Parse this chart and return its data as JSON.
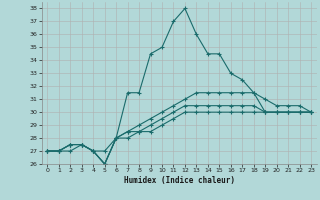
{
  "xlabel": "Humidex (Indice chaleur)",
  "background_color": "#b2d8d8",
  "grid_color": "#b0b0b0",
  "line_color": "#1a6b6b",
  "xlim": [
    -0.5,
    23.5
  ],
  "ylim": [
    26,
    38.5
  ],
  "yticks": [
    26,
    27,
    28,
    29,
    30,
    31,
    32,
    33,
    34,
    35,
    36,
    37,
    38
  ],
  "xticks": [
    0,
    1,
    2,
    3,
    4,
    5,
    6,
    7,
    8,
    9,
    10,
    11,
    12,
    13,
    14,
    15,
    16,
    17,
    18,
    19,
    20,
    21,
    22,
    23
  ],
  "series": [
    {
      "x": [
        0,
        1,
        2,
        3,
        4,
        5,
        6,
        7,
        8,
        9,
        10,
        11,
        12,
        13,
        14,
        15,
        16,
        17,
        18,
        19,
        20,
        21,
        22,
        23
      ],
      "y": [
        27.0,
        27.0,
        27.5,
        27.5,
        27.0,
        27.0,
        28.0,
        31.5,
        31.5,
        34.5,
        35.0,
        37.0,
        38.0,
        36.0,
        34.5,
        34.5,
        33.0,
        32.5,
        31.5,
        30.0,
        30.0,
        30.0,
        30.0,
        30.0
      ]
    },
    {
      "x": [
        0,
        1,
        2,
        3,
        4,
        5,
        6,
        7,
        8,
        9,
        10,
        11,
        12,
        13,
        14,
        15,
        16,
        17,
        18,
        19,
        20,
        21,
        22,
        23
      ],
      "y": [
        27.0,
        27.0,
        27.5,
        27.5,
        27.0,
        26.0,
        28.0,
        28.5,
        29.0,
        29.5,
        30.0,
        30.5,
        31.0,
        31.5,
        31.5,
        31.5,
        31.5,
        31.5,
        31.5,
        31.0,
        30.5,
        30.5,
        30.5,
        30.0
      ]
    },
    {
      "x": [
        0,
        1,
        2,
        3,
        4,
        5,
        6,
        7,
        8,
        9,
        10,
        11,
        12,
        13,
        14,
        15,
        16,
        17,
        18,
        19,
        20,
        21,
        22,
        23
      ],
      "y": [
        27.0,
        27.0,
        27.5,
        27.5,
        27.0,
        26.0,
        28.0,
        28.5,
        28.5,
        29.0,
        29.5,
        30.0,
        30.5,
        30.5,
        30.5,
        30.5,
        30.5,
        30.5,
        30.5,
        30.0,
        30.0,
        30.0,
        30.0,
        30.0
      ]
    },
    {
      "x": [
        0,
        1,
        2,
        3,
        4,
        5,
        6,
        7,
        8,
        9,
        10,
        11,
        12,
        13,
        14,
        15,
        16,
        17,
        18,
        19,
        20,
        21,
        22,
        23
      ],
      "y": [
        27.0,
        27.0,
        27.0,
        27.5,
        27.0,
        26.0,
        28.0,
        28.0,
        28.5,
        28.5,
        29.0,
        29.5,
        30.0,
        30.0,
        30.0,
        30.0,
        30.0,
        30.0,
        30.0,
        30.0,
        30.0,
        30.0,
        30.0,
        30.0
      ]
    }
  ],
  "marker": "+",
  "markersize": 3,
  "linewidth": 0.8
}
